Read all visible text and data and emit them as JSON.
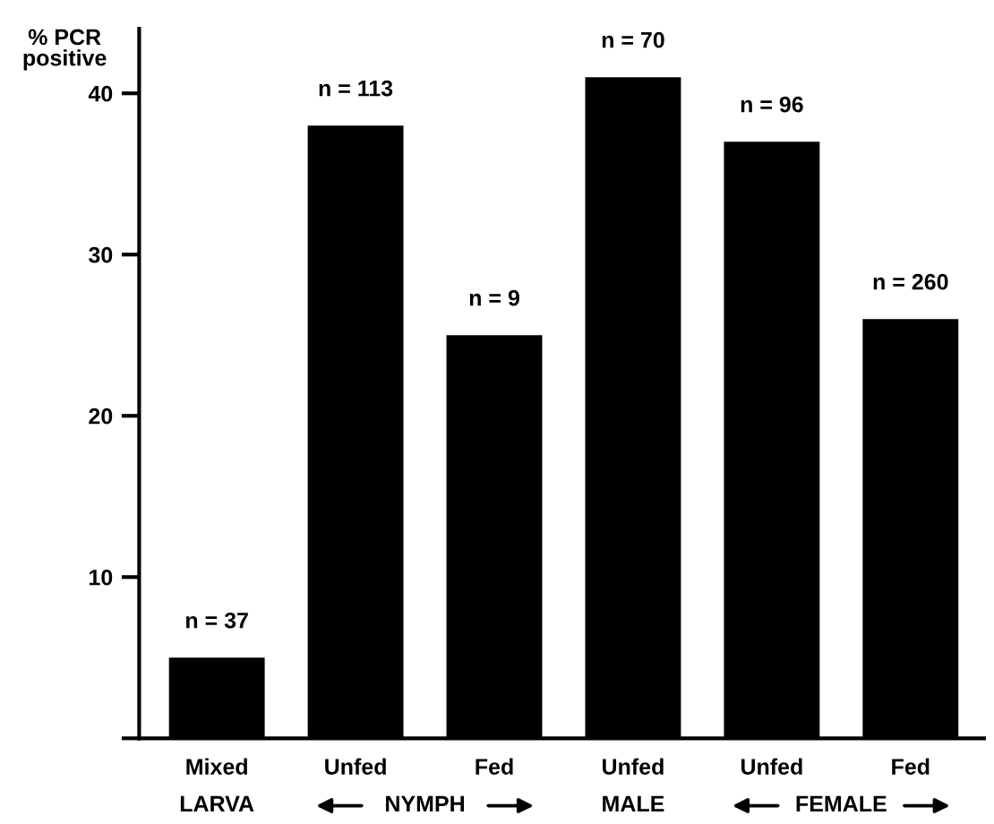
{
  "chart_data": {
    "type": "bar",
    "ylabel": "% PCR positive",
    "categories": [
      "Mixed",
      "Unfed",
      "Fed",
      "Unfed",
      "Unfed",
      "Fed"
    ],
    "values": [
      5,
      38,
      25,
      41,
      37,
      26
    ],
    "color": "#000000",
    "ylim": [
      0,
      44
    ],
    "yticks": [
      {
        "value": 0,
        "label": null
      },
      10,
      20,
      30,
      40
    ],
    "annotations": [
      "n = 37",
      "n = 113",
      "n = 9",
      "n = 70",
      "n = 96",
      "n = 260",
      "LARVA",
      "NYMPH",
      "MALE",
      "FEMALE"
    ],
    "grid": false,
    "legend": false
  }
}
